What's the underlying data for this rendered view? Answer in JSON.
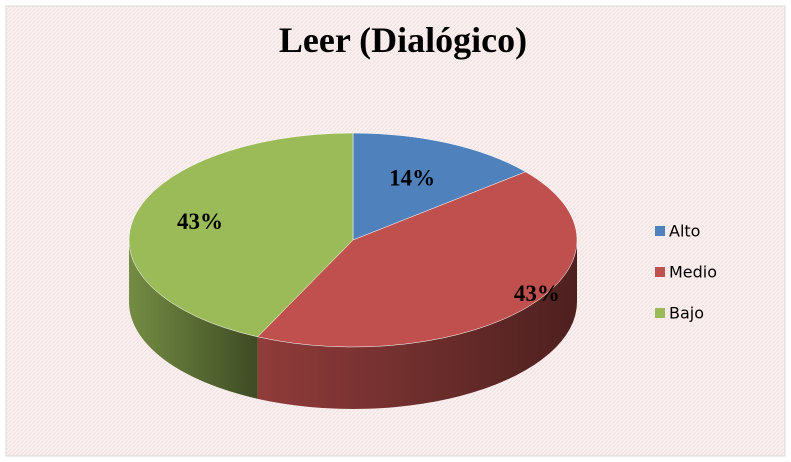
{
  "chart_data": {
    "type": "pie",
    "title": "Leer (Dialógico)",
    "categories": [
      "Alto",
      "Medio",
      "Bajo"
    ],
    "values": [
      14,
      43,
      43
    ],
    "value_labels": [
      "14%",
      "43%",
      "43%"
    ],
    "colors": [
      "#4f81bd",
      "#c0504d",
      "#9bbb59"
    ],
    "legend": "right"
  }
}
